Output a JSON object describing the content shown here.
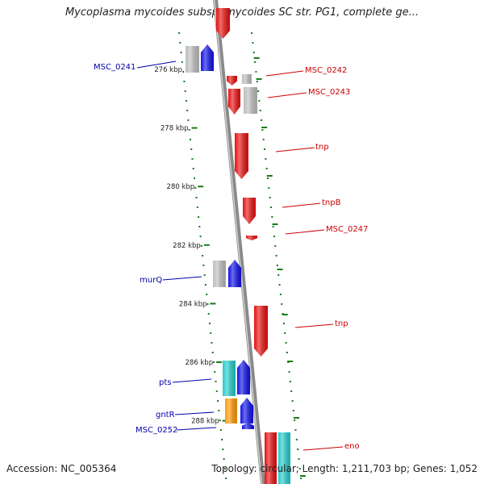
{
  "title": "Mycoplasma mycoides subsp. mycoides SC str. PG1, complete ge...",
  "footer": {
    "accession": "Accession: NC_005364",
    "topology": "Topology: circular; Length: 1,211,703 bp; Genes: 1,052"
  },
  "ticks": [
    {
      "label": "276 kbp",
      "kbp": 276
    },
    {
      "label": "278 kbp",
      "kbp": 278
    },
    {
      "label": "280 kbp",
      "kbp": 280
    },
    {
      "label": "282 kbp",
      "kbp": 282
    },
    {
      "label": "284 kbp",
      "kbp": 284
    },
    {
      "label": "286 kbp",
      "kbp": 286
    },
    {
      "label": "288 kbp",
      "kbp": 288
    }
  ],
  "colors": {
    "backbone": "#8a8a8a",
    "forward": "#1010e8",
    "reverse": "#e81010",
    "gray": "#bdbdbd",
    "cyan": "#22cccc",
    "orange": "#ff9900",
    "dots": "#1a7a1a",
    "label_forward": "#0000aa",
    "label_reverse": "#cc0000"
  },
  "genes": [
    {
      "name": "MSC_0241",
      "labeled": true,
      "strand": "forward"
    },
    {
      "name": "MSC_0242",
      "labeled": true,
      "strand": "reverse"
    },
    {
      "name": "MSC_0243",
      "labeled": true,
      "strand": "reverse"
    },
    {
      "name": "tnp",
      "labeled": true,
      "strand": "reverse"
    },
    {
      "name": "tnpB",
      "labeled": true,
      "strand": "reverse"
    },
    {
      "name": "MSC_0247",
      "labeled": true,
      "strand": "reverse"
    },
    {
      "name": "murQ",
      "labeled": true,
      "strand": "forward"
    },
    {
      "name": "tnp",
      "labeled": true,
      "strand": "reverse"
    },
    {
      "name": "pts",
      "labeled": true,
      "strand": "forward"
    },
    {
      "name": "gntR",
      "labeled": true,
      "strand": "forward"
    },
    {
      "name": "MSC_0252",
      "labeled": true,
      "strand": "forward"
    },
    {
      "name": "eno",
      "labeled": true,
      "strand": "reverse"
    }
  ]
}
